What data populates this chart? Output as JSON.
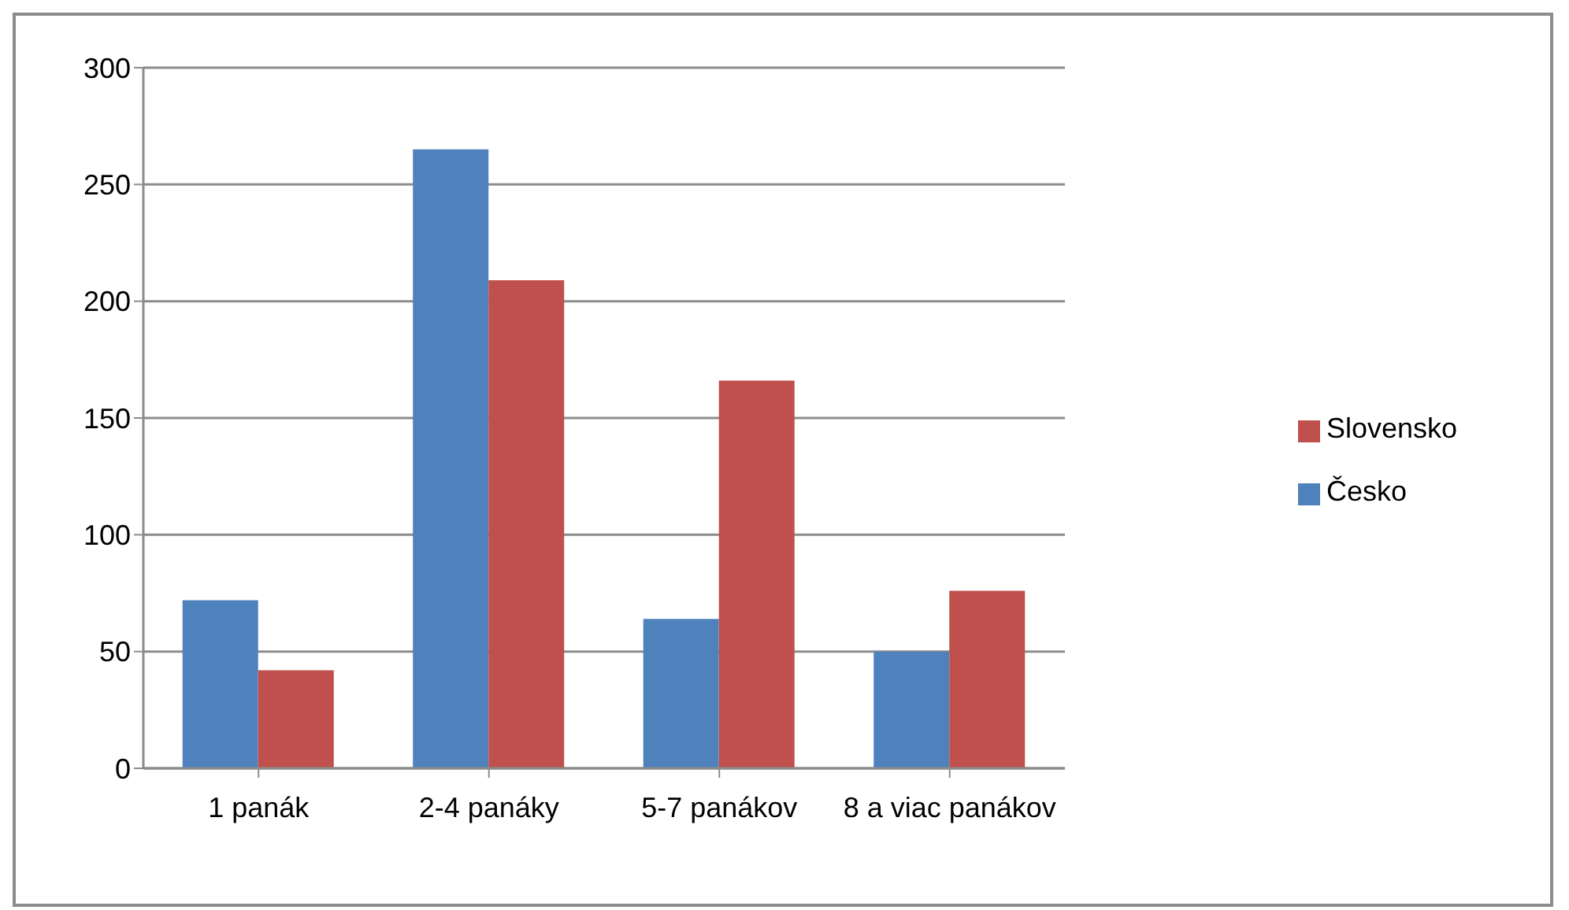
{
  "chart_data": {
    "type": "bar",
    "categories": [
      "1 panák",
      "2-4 panáky",
      "5-7 panákov",
      "8 a viac panákov"
    ],
    "series": [
      {
        "name": "Česko",
        "color": "#4f81bd",
        "values": [
          72,
          265,
          64,
          50
        ]
      },
      {
        "name": "Slovensko",
        "color": "#c0504d",
        "values": [
          42,
          209,
          166,
          76
        ]
      }
    ],
    "ylim": [
      0,
      300
    ],
    "yticks": [
      0,
      50,
      100,
      150,
      200,
      250,
      300
    ],
    "grid": "y",
    "legend": "right"
  }
}
